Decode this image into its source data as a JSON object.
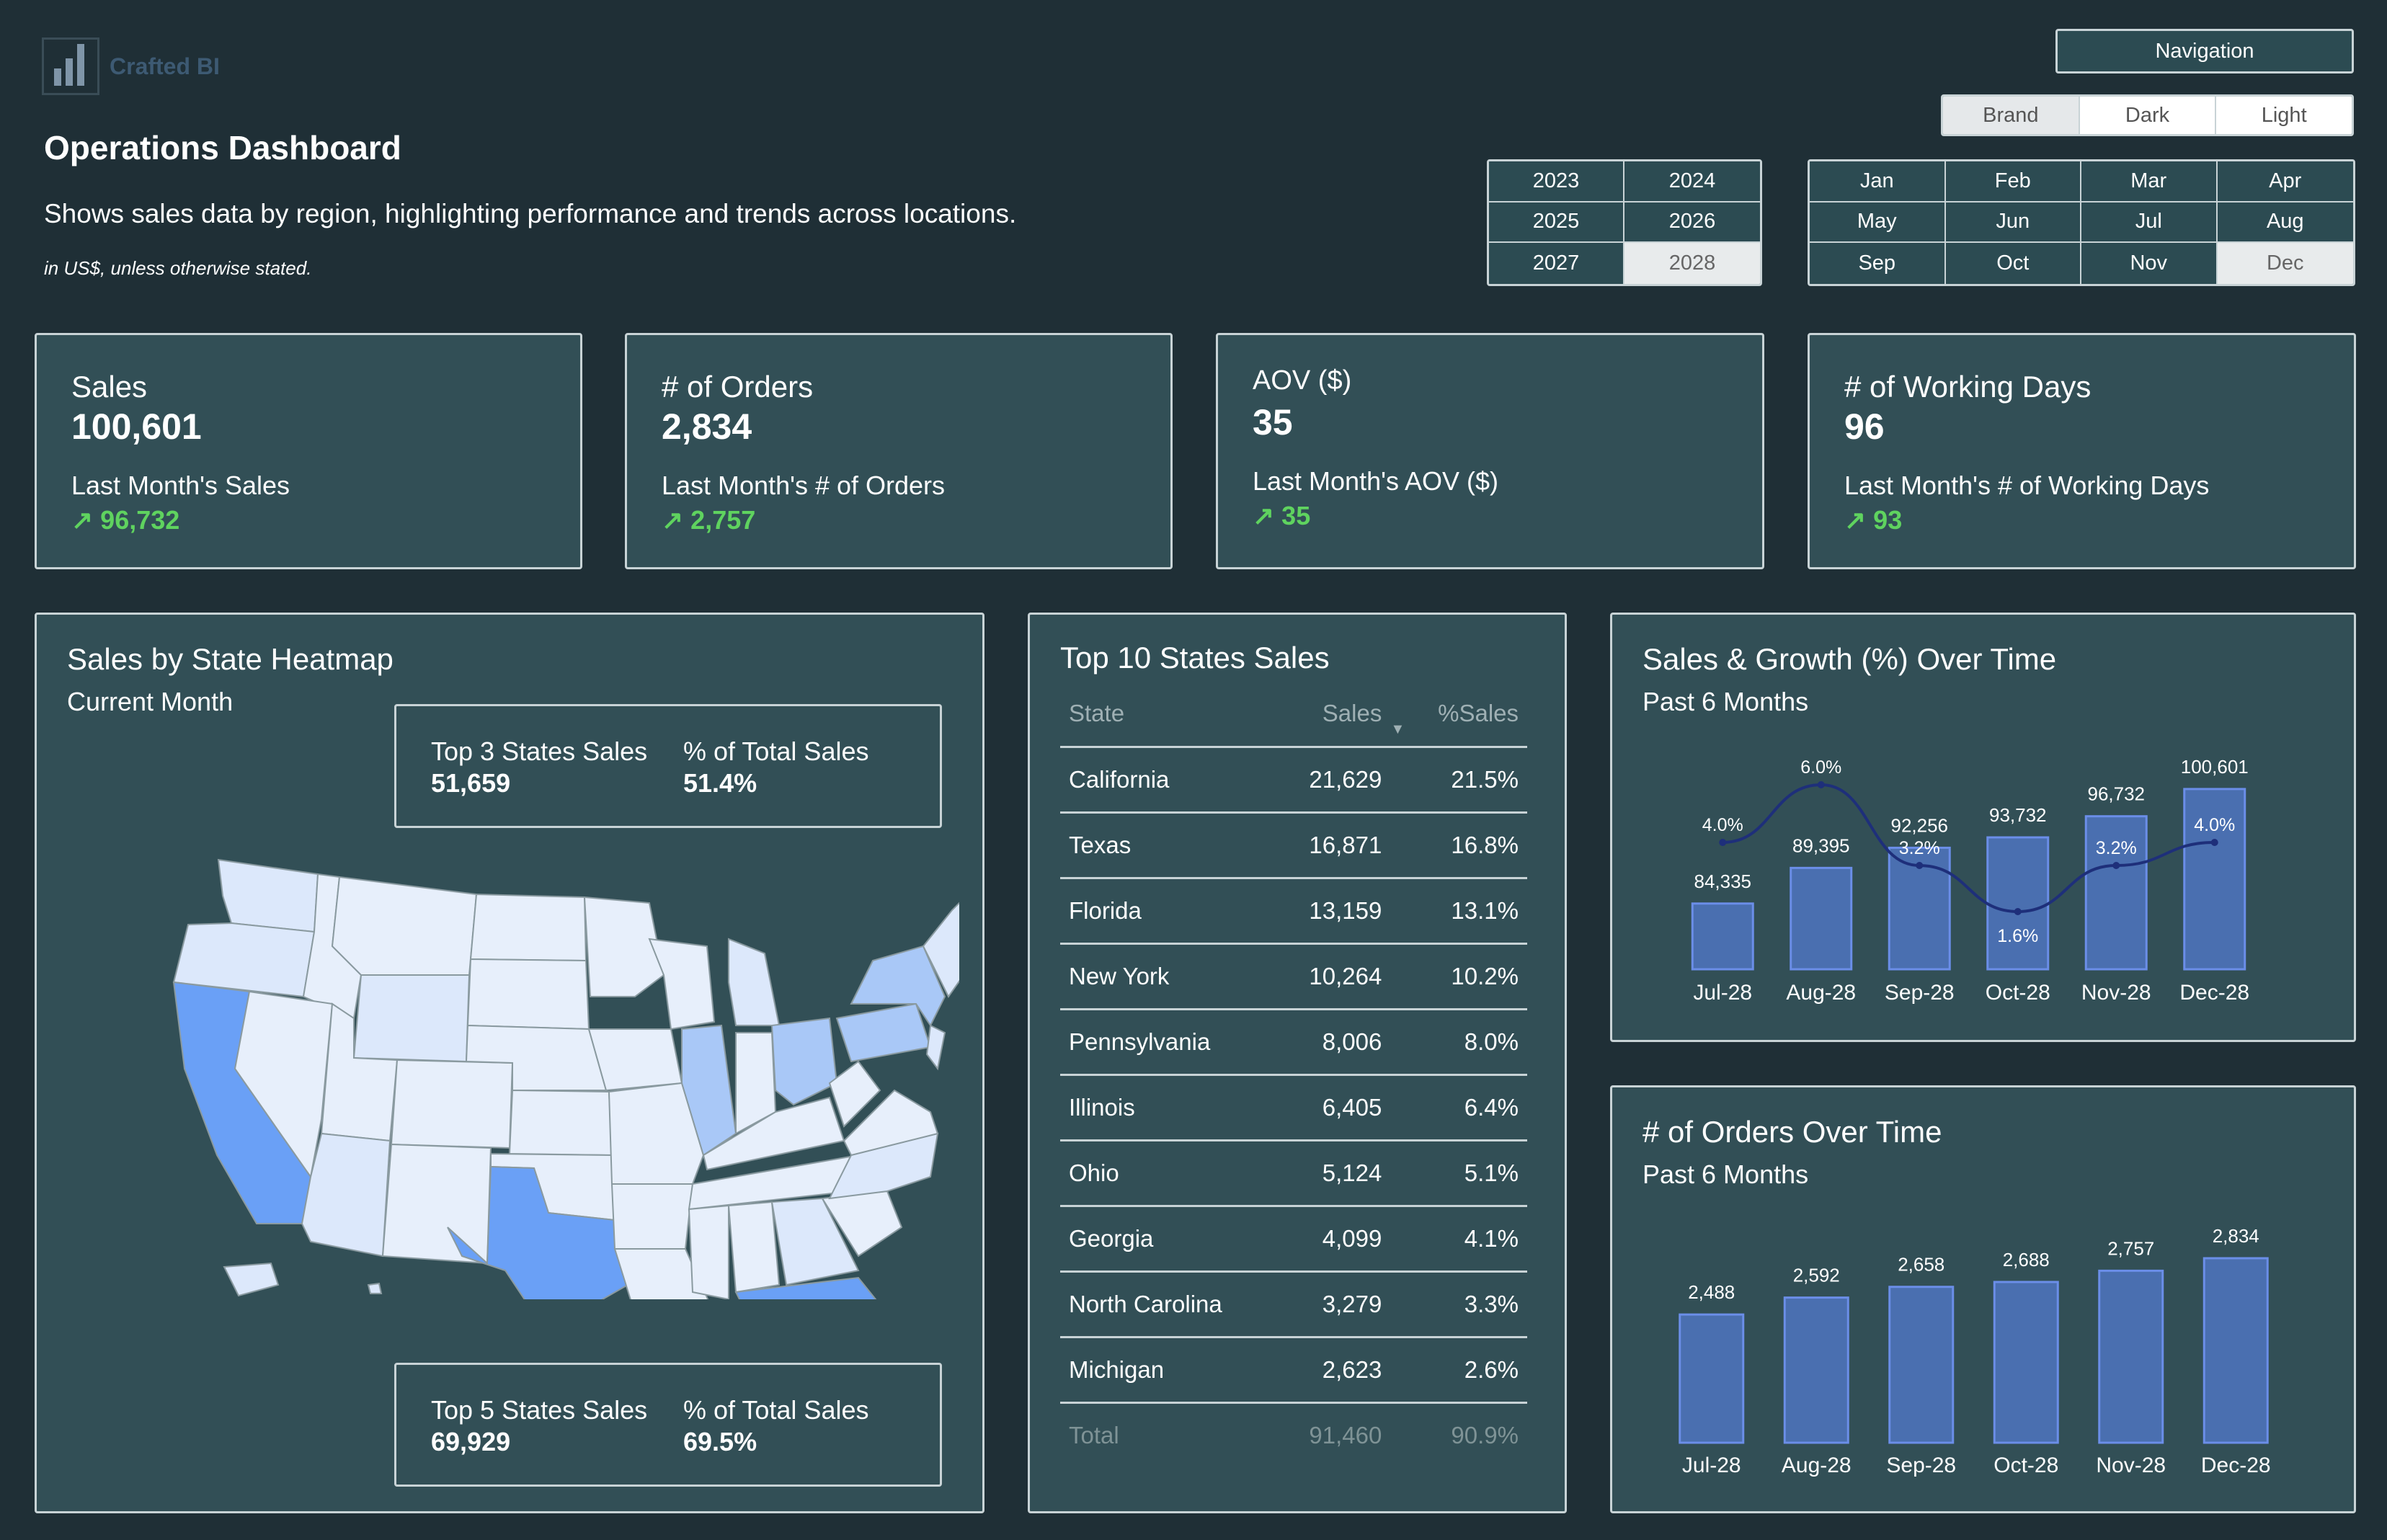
{
  "brand": {
    "name": "Crafted BI",
    "logo_icon": "bar-chart-logo-icon"
  },
  "header": {
    "title": "Operations Dashboard",
    "subtitle": "Shows sales data by region, highlighting performance and trends across locations.",
    "note": "in US$, unless otherwise stated."
  },
  "navigation": {
    "label": "Navigation"
  },
  "theme": {
    "options": [
      "Brand",
      "Dark",
      "Light"
    ],
    "selected": "Brand"
  },
  "years": {
    "options": [
      "2023",
      "2024",
      "2025",
      "2026",
      "2027",
      "2028"
    ],
    "selected": "2028"
  },
  "months": {
    "options": [
      "Jan",
      "Feb",
      "Mar",
      "Apr",
      "May",
      "Jun",
      "Jul",
      "Aug",
      "Sep",
      "Oct",
      "Nov",
      "Dec"
    ],
    "selected": "Dec"
  },
  "kpis": [
    {
      "label": "Sales",
      "value": "100,601",
      "sub_label": "Last Month's Sales",
      "delta": "↗ 96,732"
    },
    {
      "label": "# of Orders",
      "value": "2,834",
      "sub_label": "Last Month's # of Orders",
      "delta": "↗ 2,757"
    },
    {
      "label": "AOV ($)",
      "value": "35",
      "sub_label": "Last Month's AOV ($)",
      "delta": "↗ 35"
    },
    {
      "label": "# of Working Days",
      "value": "96",
      "sub_label": "Last Month's # of Working Days",
      "delta": "↗ 93"
    }
  ],
  "heatmap": {
    "title": "Sales by State Heatmap",
    "subtitle": "Current Month",
    "top3": {
      "label": "Top 3 States Sales",
      "value": "51,659",
      "pct_label": "% of Total Sales",
      "pct_value": "51.4%"
    },
    "top5": {
      "label": "Top 5 States Sales",
      "value": "69,929",
      "pct_label": "% of Total Sales",
      "pct_value": "69.5%"
    },
    "colors": {
      "high": "#6aa0f6",
      "mid": "#a9c8f7",
      "low": "#dce8fb",
      "border": "#8a9aa0"
    }
  },
  "top_states": {
    "title": "Top 10 States Sales",
    "columns": [
      "State",
      "Sales",
      "%Sales"
    ],
    "rows": [
      [
        "California",
        "21,629",
        "21.5%"
      ],
      [
        "Texas",
        "16,871",
        "16.8%"
      ],
      [
        "Florida",
        "13,159",
        "13.1%"
      ],
      [
        "New York",
        "10,264",
        "10.2%"
      ],
      [
        "Pennsylvania",
        "8,006",
        "8.0%"
      ],
      [
        "Illinois",
        "6,405",
        "6.4%"
      ],
      [
        "Ohio",
        "5,124",
        "5.1%"
      ],
      [
        "Georgia",
        "4,099",
        "4.1%"
      ],
      [
        "North Carolina",
        "3,279",
        "3.3%"
      ],
      [
        "Michigan",
        "2,623",
        "2.6%"
      ]
    ],
    "total": [
      "Total",
      "91,460",
      "90.9%"
    ]
  },
  "sales_growth": {
    "title": "Sales & Growth (%) Over Time",
    "subtitle": "Past 6 Months"
  },
  "orders_chart": {
    "title": "# of Orders Over Time",
    "subtitle": "Past 6 Months"
  },
  "chart_data": [
    {
      "type": "bar",
      "title": "Sales & Growth (%) Over Time",
      "categories": [
        "Jul-28",
        "Aug-28",
        "Sep-28",
        "Oct-28",
        "Nov-28",
        "Dec-28"
      ],
      "series": [
        {
          "type": "bar",
          "values": [
            84335,
            89395,
            92256,
            93732,
            96732,
            100601
          ],
          "labels": [
            "84,335",
            "89,395",
            "92,256",
            "93,732",
            "96,732",
            "100,601"
          ]
        },
        {
          "type": "line",
          "values": [
            4.0,
            6.0,
            3.2,
            1.6,
            3.2,
            4.0
          ],
          "labels": [
            "4.0%",
            "6.0%",
            "3.2%",
            "1.6%",
            "3.2%",
            "4.0%"
          ]
        }
      ],
      "ylim": [
        75000,
        101000
      ],
      "line_ylim": [
        0,
        8
      ],
      "colors": {
        "bar": "#4a6fb0",
        "bar_border": "#6b8ee8",
        "line": "#1e2f7a"
      }
    },
    {
      "type": "bar",
      "title": "# of Orders Over Time",
      "categories": [
        "Jul-28",
        "Aug-28",
        "Sep-28",
        "Oct-28",
        "Nov-28",
        "Dec-28"
      ],
      "values": [
        2488,
        2592,
        2658,
        2688,
        2757,
        2834
      ],
      "labels": [
        "2,488",
        "2,592",
        "2,658",
        "2,688",
        "2,757",
        "2,834"
      ],
      "ylim": [
        0,
        2834
      ],
      "colors": {
        "bar": "#4a6fb0",
        "bar_border": "#6b8ee8"
      }
    }
  ]
}
